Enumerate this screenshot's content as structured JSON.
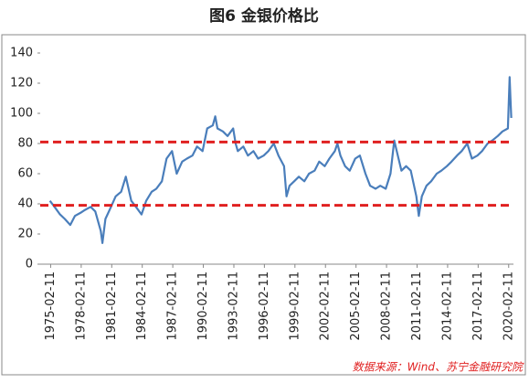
{
  "chart_data": {
    "type": "line",
    "title": "图6 金银价格比",
    "source": "数据来源：Wind、苏宁金融研究院",
    "x": [
      "1975-01-15",
      "1975-07-01",
      "1976-01-15",
      "1976-07-01",
      "1977-01-15",
      "1977-07-01",
      "1978-01-15",
      "1978-07-01",
      "1979-01-15",
      "1979-07-01",
      "1980-01-15",
      "1980-03-15",
      "1980-07-01",
      "1981-01-15",
      "1981-07-01",
      "1982-01-15",
      "1982-07-01",
      "1983-01-15",
      "1983-07-01",
      "1984-01-15",
      "1984-07-01",
      "1985-01-15",
      "1985-07-01",
      "1986-01-15",
      "1986-07-01",
      "1987-01-15",
      "1987-07-01",
      "1988-01-15",
      "1988-07-01",
      "1989-01-15",
      "1989-07-01",
      "1990-01-15",
      "1990-07-01",
      "1991-01-15",
      "1991-04-15",
      "1991-07-01",
      "1992-01-15",
      "1992-07-01",
      "1993-01-15",
      "1993-04-15",
      "1993-07-01",
      "1994-01-15",
      "1994-07-01",
      "1995-01-15",
      "1995-07-01",
      "1996-01-15",
      "1996-07-01",
      "1997-01-15",
      "1997-07-01",
      "1998-01-15",
      "1998-04-15",
      "1998-08-01",
      "1999-01-15",
      "1999-07-01",
      "2000-01-15",
      "2000-07-01",
      "2001-01-15",
      "2001-07-01",
      "2002-01-15",
      "2002-07-01",
      "2003-01-15",
      "2003-04-15",
      "2003-08-01",
      "2004-01-15",
      "2004-07-01",
      "2005-01-15",
      "2005-07-01",
      "2006-01-15",
      "2006-07-01",
      "2007-01-15",
      "2007-07-01",
      "2008-01-15",
      "2008-07-01",
      "2008-11-15",
      "2009-04-15",
      "2009-08-01",
      "2010-01-15",
      "2010-07-01",
      "2011-01-15",
      "2011-04-15",
      "2011-08-01",
      "2012-01-15",
      "2012-07-01",
      "2013-01-15",
      "2013-07-01",
      "2014-01-15",
      "2014-07-01",
      "2015-01-15",
      "2015-07-01",
      "2016-01-15",
      "2016-07-01",
      "2017-01-15",
      "2017-07-01",
      "2018-01-15",
      "2018-07-01",
      "2019-01-15",
      "2019-07-01",
      "2020-01-15",
      "2020-03-15",
      "2020-04-15",
      "2020-05-15"
    ],
    "series": [
      {
        "color": "#4a7ebb",
        "values": [
          42,
          38,
          33,
          30,
          26,
          32,
          34,
          36,
          38,
          35,
          22,
          14,
          30,
          38,
          45,
          48,
          58,
          42,
          38,
          33,
          42,
          48,
          50,
          55,
          70,
          75,
          60,
          68,
          70,
          72,
          78,
          75,
          90,
          92,
          98,
          90,
          88,
          85,
          90,
          80,
          75,
          78,
          72,
          75,
          70,
          72,
          75,
          80,
          72,
          65,
          45,
          52,
          55,
          58,
          55,
          60,
          62,
          68,
          65,
          70,
          75,
          80,
          72,
          65,
          62,
          70,
          72,
          60,
          52,
          50,
          52,
          50,
          60,
          82,
          70,
          62,
          65,
          62,
          45,
          32,
          45,
          52,
          55,
          60,
          62,
          65,
          68,
          72,
          75,
          80,
          70,
          72,
          75,
          80,
          82,
          85,
          88,
          90,
          124,
          110,
          97
        ]
      }
    ],
    "hlines": [
      {
        "value": 81,
        "color": "#e02020"
      },
      {
        "value": 39,
        "color": "#e02020"
      }
    ],
    "xlim": [
      "1974-02-01",
      "2020-08-01"
    ],
    "xticks": [
      "1975-02-11",
      "1978-02-11",
      "1981-02-11",
      "1984-02-11",
      "1987-02-11",
      "1990-02-11",
      "1993-02-11",
      "1996-02-11",
      "1999-02-11",
      "2002-02-11",
      "2005-02-11",
      "2008-02-11",
      "2011-02-11",
      "2014-02-11",
      "2017-02-11",
      "2020-02-11"
    ],
    "ylim": [
      0,
      140
    ],
    "yticks": [
      0,
      20,
      40,
      60,
      80,
      100,
      120,
      140
    ]
  }
}
